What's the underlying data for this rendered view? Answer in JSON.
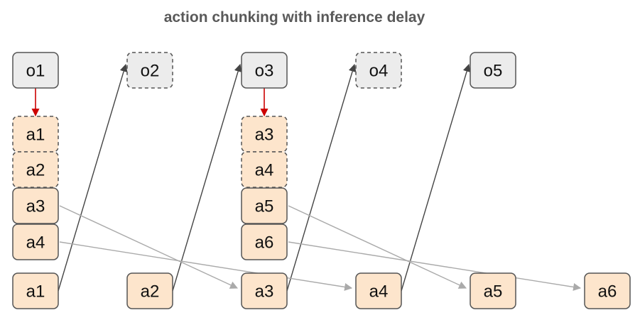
{
  "title": "action chunking with inference delay",
  "colors": {
    "observation_fill": "#ececec",
    "action_fill": "#fde5cc",
    "border": "#555555",
    "obs_arrow": "#444444",
    "flow_arrow": "#aaaaaa",
    "trigger_arrow": "#cc0000"
  },
  "observations": [
    {
      "label": "o1",
      "style": "solid"
    },
    {
      "label": "o2",
      "style": "dashed"
    },
    {
      "label": "o3",
      "style": "solid"
    },
    {
      "label": "o4",
      "style": "dashed"
    },
    {
      "label": "o5",
      "style": "solid"
    }
  ],
  "chunks": [
    {
      "id": "chunk1",
      "items": [
        {
          "label": "a1",
          "style": "dashed"
        },
        {
          "label": "a2",
          "style": "dashed"
        },
        {
          "label": "a3",
          "style": "solid"
        },
        {
          "label": "a4",
          "style": "solid"
        }
      ]
    },
    {
      "id": "chunk2",
      "items": [
        {
          "label": "a3",
          "style": "dashed"
        },
        {
          "label": "a4",
          "style": "dashed"
        },
        {
          "label": "a5",
          "style": "solid"
        },
        {
          "label": "a6",
          "style": "solid"
        }
      ]
    }
  ],
  "executed_actions": [
    {
      "label": "a1"
    },
    {
      "label": "a2"
    },
    {
      "label": "a3"
    },
    {
      "label": "a4"
    },
    {
      "label": "a5"
    },
    {
      "label": "a6"
    }
  ],
  "edges": {
    "trigger": [
      {
        "from": "obs.o1",
        "to": "chunk1.a1"
      },
      {
        "from": "obs.o3",
        "to": "chunk2.a3"
      }
    ],
    "observation": [
      {
        "from": "exec.a1",
        "to": "obs.o2"
      },
      {
        "from": "exec.a2",
        "to": "obs.o3"
      },
      {
        "from": "exec.a3",
        "to": "obs.o4"
      },
      {
        "from": "exec.a4",
        "to": "obs.o5"
      }
    ],
    "flow": [
      {
        "from": "chunk1.a3",
        "to": "exec.a3"
      },
      {
        "from": "chunk1.a4",
        "to": "exec.a4"
      },
      {
        "from": "chunk2.a5",
        "to": "exec.a5"
      },
      {
        "from": "chunk2.a6",
        "to": "exec.a6"
      }
    ]
  }
}
